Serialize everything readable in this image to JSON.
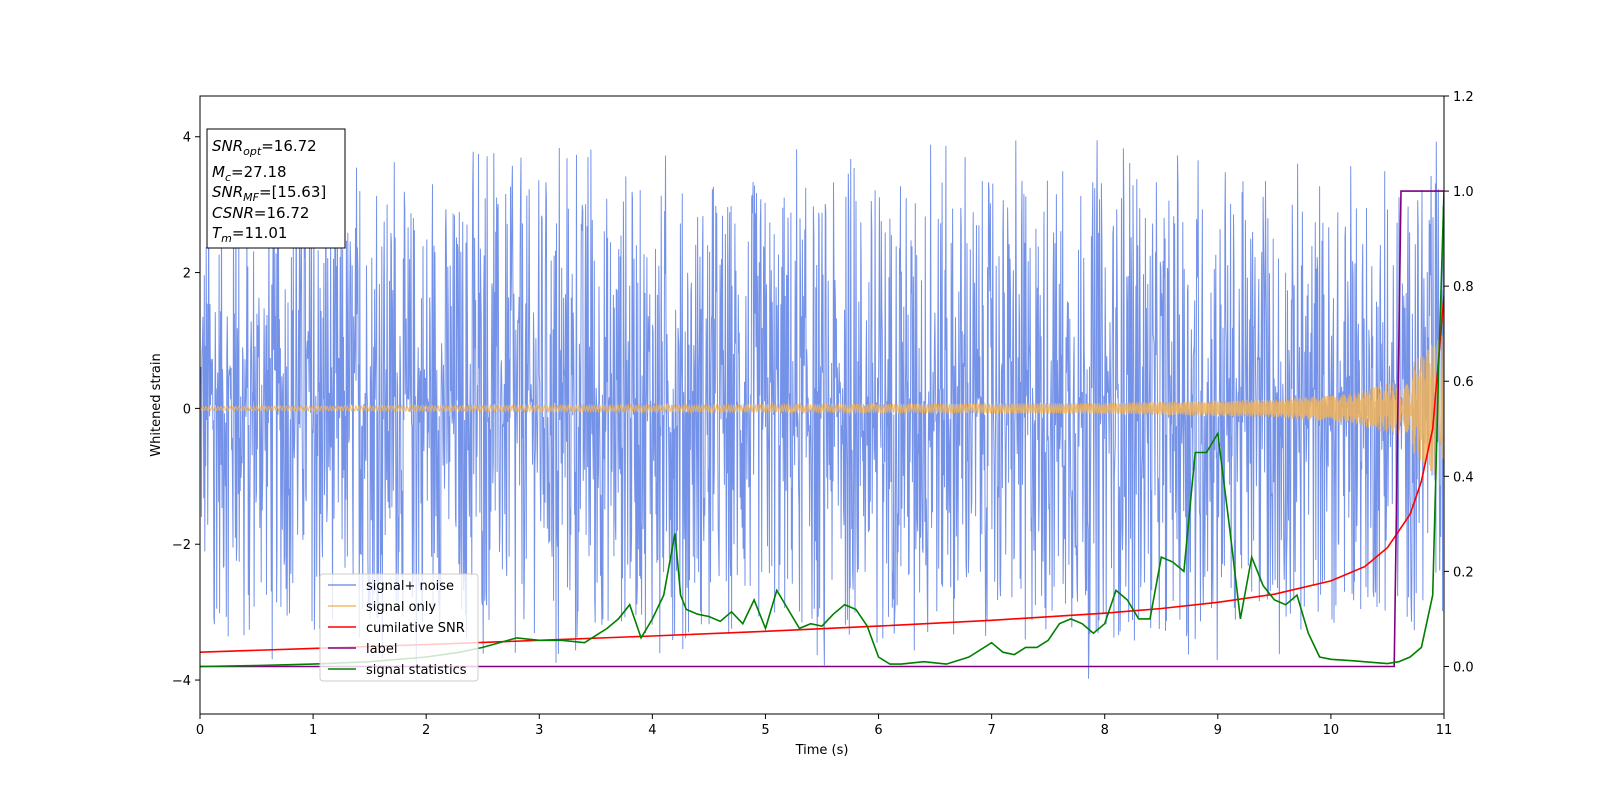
{
  "chart_data": {
    "type": "line",
    "title": "",
    "xlabel": "Time (s)",
    "ylabel": "Whitened strain",
    "xlim": [
      0,
      11
    ],
    "ylim": [
      -4.5,
      4.6
    ],
    "y2lim": [
      -0.1,
      1.2
    ],
    "xticks": [
      0,
      1,
      2,
      3,
      4,
      5,
      6,
      7,
      8,
      9,
      10,
      11
    ],
    "yticks": [
      -4,
      -2,
      0,
      2,
      4
    ],
    "y2ticks": [
      0.0,
      0.2,
      0.4,
      0.6,
      0.8,
      1.0,
      1.2
    ],
    "xtick_labels": [
      "0",
      "1",
      "2",
      "3",
      "4",
      "5",
      "6",
      "7",
      "8",
      "9",
      "10",
      "11"
    ],
    "ytick_labels": [
      "−4",
      "−2",
      "0",
      "2",
      "4"
    ],
    "y2tick_labels": [
      "0.0",
      "0.2",
      "0.4",
      "0.6",
      "0.8",
      "1.0",
      "1.2"
    ],
    "grid": false,
    "legend_position": "lower-left",
    "annotation": [
      {
        "sym": "SNR",
        "sub": "opt",
        "value": "=16.72"
      },
      {
        "sym": "M",
        "sub": "c",
        "value": "=27.18"
      },
      {
        "sym": "SNR",
        "sub": "MF",
        "value": "=[15.63]"
      },
      {
        "sym": "CSNR",
        "sub": "",
        "value": "=16.72"
      },
      {
        "sym": "T",
        "sub": "m",
        "value": "=11.01"
      }
    ],
    "series": [
      {
        "name": "signal+ noise",
        "color": "#6e8ce8",
        "axis": "left",
        "style": "noise",
        "envelope_t": [
          0,
          2,
          4,
          6,
          8,
          9,
          10,
          10.5,
          10.8,
          11.0
        ],
        "envelope_abs": [
          3.5,
          3.6,
          3.7,
          3.7,
          3.8,
          3.6,
          3.4,
          3.4,
          3.6,
          4.2
        ]
      },
      {
        "name": "signal only",
        "color": "#f0b35a",
        "axis": "left",
        "style": "chirp",
        "amplitude_t": [
          0,
          4,
          8,
          9.5,
          10.2,
          10.6,
          10.85,
          11.0
        ],
        "amplitude": [
          0.03,
          0.05,
          0.08,
          0.13,
          0.22,
          0.42,
          0.9,
          1.1
        ]
      },
      {
        "name": "cumilative SNR",
        "color": "#ff0000",
        "axis": "right",
        "x": [
          0,
          1,
          2,
          3,
          4,
          5,
          6,
          7,
          8,
          8.5,
          9,
          9.5,
          10,
          10.3,
          10.5,
          10.7,
          10.8,
          10.9,
          11.0
        ],
        "y": [
          0.03,
          0.038,
          0.046,
          0.055,
          0.064,
          0.074,
          0.085,
          0.097,
          0.112,
          0.122,
          0.135,
          0.152,
          0.18,
          0.21,
          0.25,
          0.32,
          0.39,
          0.5,
          0.78
        ]
      },
      {
        "name": "label",
        "color": "#800080",
        "axis": "right",
        "x": [
          0,
          10.56,
          10.62,
          11.0
        ],
        "y": [
          0.0,
          0.0,
          1.0,
          1.0
        ]
      },
      {
        "name": "signal statistics",
        "color": "#008000",
        "axis": "right",
        "x": [
          0,
          0.5,
          1.0,
          1.5,
          2.0,
          2.3,
          2.5,
          2.8,
          3.0,
          3.2,
          3.4,
          3.6,
          3.7,
          3.8,
          3.9,
          4.0,
          4.1,
          4.2,
          4.25,
          4.3,
          4.4,
          4.5,
          4.6,
          4.7,
          4.8,
          4.9,
          5.0,
          5.1,
          5.2,
          5.3,
          5.4,
          5.5,
          5.6,
          5.7,
          5.8,
          5.9,
          6.0,
          6.1,
          6.2,
          6.4,
          6.6,
          6.8,
          7.0,
          7.1,
          7.2,
          7.3,
          7.4,
          7.5,
          7.6,
          7.7,
          7.8,
          7.9,
          8.0,
          8.1,
          8.2,
          8.3,
          8.4,
          8.5,
          8.6,
          8.7,
          8.8,
          8.9,
          9.0,
          9.1,
          9.2,
          9.3,
          9.4,
          9.5,
          9.6,
          9.7,
          9.8,
          9.9,
          10.0,
          10.2,
          10.4,
          10.5,
          10.6,
          10.7,
          10.8,
          10.9,
          10.95,
          11.0
        ],
        "y": [
          0.0,
          0.002,
          0.005,
          0.01,
          0.02,
          0.03,
          0.04,
          0.06,
          0.055,
          0.055,
          0.05,
          0.08,
          0.1,
          0.13,
          0.06,
          0.1,
          0.15,
          0.28,
          0.15,
          0.12,
          0.11,
          0.105,
          0.095,
          0.115,
          0.09,
          0.14,
          0.08,
          0.16,
          0.12,
          0.08,
          0.09,
          0.085,
          0.11,
          0.13,
          0.12,
          0.085,
          0.02,
          0.005,
          0.005,
          0.01,
          0.005,
          0.02,
          0.05,
          0.03,
          0.025,
          0.04,
          0.04,
          0.055,
          0.09,
          0.1,
          0.09,
          0.07,
          0.09,
          0.16,
          0.14,
          0.1,
          0.1,
          0.23,
          0.22,
          0.2,
          0.45,
          0.45,
          0.49,
          0.3,
          0.1,
          0.23,
          0.17,
          0.14,
          0.13,
          0.15,
          0.07,
          0.02,
          0.015,
          0.012,
          0.008,
          0.006,
          0.01,
          0.02,
          0.04,
          0.15,
          0.6,
          1.0
        ]
      }
    ]
  }
}
